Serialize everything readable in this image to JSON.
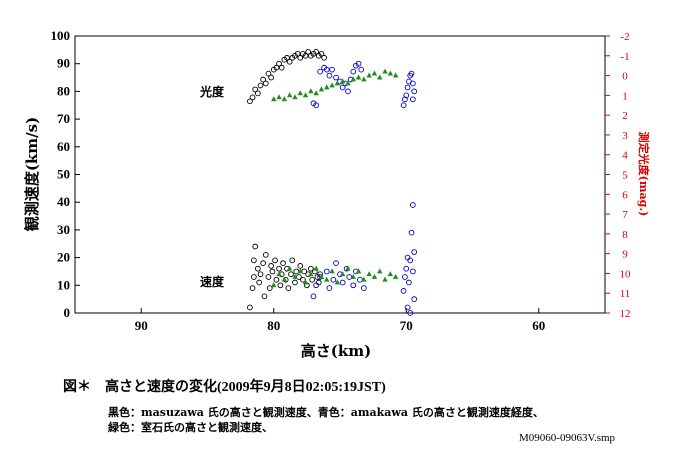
{
  "caption": {
    "label": "図＊　高さと速度の変化",
    "timestamp": "(2009年9月8日02:05:19JST)"
  },
  "legend_lines": [
    "黒色：masuzawa 氏の高さと観測速度、青色：amakawa 氏の高さと観測速度経度、",
    "緑色：室石氏の高さと観測速度、"
  ],
  "file_id": "M09060-09063V.smp",
  "annotations": {
    "brightness": "光度",
    "velocity": "速度"
  },
  "colors": {
    "series_black": "#000000",
    "series_blue": "#0000cc",
    "series_green": "#228b22",
    "right_axis": "#e00000"
  },
  "chart_data": {
    "type": "scatter",
    "xlabel": "高さ(km)",
    "ylabel": "観測速度(km/s)",
    "ylabel_right": "測定光度(mag.)",
    "xlim": [
      95,
      55
    ],
    "ylim": [
      0,
      100
    ],
    "ylim_right": [
      12,
      -2
    ],
    "x_ticks": [
      90,
      80,
      70,
      60
    ],
    "y_ticks": [
      0,
      10,
      20,
      30,
      40,
      50,
      60,
      70,
      80,
      90,
      100
    ],
    "y_right_ticks": [
      12,
      11,
      10,
      9,
      8,
      7,
      6,
      5,
      4,
      3,
      2,
      1,
      0,
      -1,
      -2
    ],
    "series": [
      {
        "name": "masuzawa",
        "color": "#000000",
        "marker": "circle",
        "velocity": [
          [
            81.8,
            2
          ],
          [
            81.6,
            9
          ],
          [
            81.5,
            13
          ],
          [
            81.5,
            19
          ],
          [
            81.4,
            24
          ],
          [
            81.2,
            16
          ],
          [
            81.1,
            11
          ],
          [
            81,
            14
          ],
          [
            80.8,
            18
          ],
          [
            80.7,
            6
          ],
          [
            80.6,
            21
          ],
          [
            80.4,
            13
          ],
          [
            80.3,
            9
          ],
          [
            80.2,
            17
          ],
          [
            80.1,
            15
          ],
          [
            79.9,
            19
          ],
          [
            79.8,
            12
          ],
          [
            79.6,
            16
          ],
          [
            79.5,
            10
          ],
          [
            79.4,
            14
          ],
          [
            79.3,
            18
          ],
          [
            79.1,
            12
          ],
          [
            79,
            16
          ],
          [
            78.9,
            9
          ],
          [
            78.7,
            14
          ],
          [
            78.6,
            19
          ],
          [
            78.4,
            11
          ],
          [
            78.3,
            15
          ],
          [
            78.1,
            13
          ],
          [
            78,
            17
          ],
          [
            77.8,
            12
          ],
          [
            77.7,
            15
          ],
          [
            77.5,
            10
          ],
          [
            77.4,
            14
          ],
          [
            77.2,
            16
          ],
          [
            77.1,
            12
          ],
          [
            76.9,
            15
          ],
          [
            76.7,
            13
          ],
          [
            76.6,
            11
          ],
          [
            76.5,
            14
          ]
        ],
        "brightness_mag": [
          [
            81.8,
            1.3
          ],
          [
            81.6,
            1.1
          ],
          [
            81.4,
            0.7
          ],
          [
            81.2,
            0.9
          ],
          [
            81,
            0.5
          ],
          [
            80.8,
            0.2
          ],
          [
            80.6,
            0.4
          ],
          [
            80.4,
            -0.1
          ],
          [
            80.2,
            0.1
          ],
          [
            80,
            -0.3
          ],
          [
            79.8,
            -0.4
          ],
          [
            79.6,
            -0.6
          ],
          [
            79.4,
            -0.4
          ],
          [
            79.2,
            -0.8
          ],
          [
            79,
            -0.9
          ],
          [
            78.8,
            -0.7
          ],
          [
            78.6,
            -0.9
          ],
          [
            78.4,
            -1
          ],
          [
            78.2,
            -1.1
          ],
          [
            78,
            -0.9
          ],
          [
            77.8,
            -1.1
          ],
          [
            77.6,
            -1
          ],
          [
            77.4,
            -1.2
          ],
          [
            77.2,
            -1
          ],
          [
            77,
            -1.1
          ],
          [
            76.8,
            -1.2
          ],
          [
            76.6,
            -1
          ],
          [
            76.4,
            -1.1
          ],
          [
            76.2,
            -0.9
          ]
        ]
      },
      {
        "name": "amakawa",
        "color": "#0000cc",
        "marker": "circle",
        "velocity": [
          [
            77,
            6
          ],
          [
            76.8,
            10
          ],
          [
            76.5,
            13
          ],
          [
            76,
            15
          ],
          [
            75.8,
            9
          ],
          [
            75.5,
            12
          ],
          [
            75.3,
            18
          ],
          [
            75,
            14
          ],
          [
            74.8,
            11
          ],
          [
            74.5,
            16
          ],
          [
            74.3,
            13
          ],
          [
            74,
            10
          ],
          [
            73.8,
            15
          ],
          [
            73.5,
            12
          ],
          [
            73.2,
            9
          ],
          [
            70.2,
            8
          ],
          [
            70.1,
            13
          ],
          [
            70,
            16
          ],
          [
            69.9,
            2
          ],
          [
            69.9,
            20
          ],
          [
            69.8,
            11
          ],
          [
            69.7,
            19
          ],
          [
            69.7,
            0
          ],
          [
            69.6,
            29
          ],
          [
            69.5,
            39
          ],
          [
            69.5,
            15
          ],
          [
            69.4,
            22
          ],
          [
            69.4,
            5
          ]
        ],
        "brightness_mag": [
          [
            77,
            1.4
          ],
          [
            76.8,
            1.5
          ],
          [
            76.5,
            -0.2
          ],
          [
            76.2,
            -0.4
          ],
          [
            76,
            -0.3
          ],
          [
            75.8,
            0
          ],
          [
            75.6,
            -0.3
          ],
          [
            75.3,
            0.1
          ],
          [
            75,
            0.3
          ],
          [
            74.8,
            0.6
          ],
          [
            74.6,
            0.4
          ],
          [
            74.4,
            0.8
          ],
          [
            74.2,
            0.2
          ],
          [
            74,
            -0.2
          ],
          [
            73.8,
            -0.5
          ],
          [
            73.6,
            -0.6
          ],
          [
            73.4,
            -0.3
          ],
          [
            70.2,
            1.5
          ],
          [
            70.1,
            1.2
          ],
          [
            70,
            1
          ],
          [
            69.9,
            0.6
          ],
          [
            69.8,
            0.3
          ],
          [
            69.7,
            0
          ],
          [
            69.6,
            -0.1
          ],
          [
            69.5,
            0.4
          ],
          [
            69.5,
            1.2
          ],
          [
            69.4,
            0.8
          ]
        ]
      },
      {
        "name": "室石",
        "color": "#228b22",
        "marker": "triangle",
        "velocity": [
          [
            80,
            10
          ],
          [
            79.6,
            14
          ],
          [
            79.2,
            12
          ],
          [
            78.8,
            16
          ],
          [
            78.4,
            13
          ],
          [
            78,
            15
          ],
          [
            77.6,
            11
          ],
          [
            77.2,
            14
          ],
          [
            76.8,
            16
          ],
          [
            76.4,
            13
          ],
          [
            76,
            12
          ],
          [
            75.6,
            15
          ],
          [
            75.2,
            11
          ],
          [
            74.8,
            14
          ],
          [
            74.4,
            16
          ],
          [
            74,
            13
          ],
          [
            73.6,
            15
          ],
          [
            73.2,
            12
          ],
          [
            72.8,
            14
          ],
          [
            72.4,
            13
          ],
          [
            72,
            15
          ],
          [
            71.6,
            12
          ],
          [
            71.2,
            14
          ],
          [
            70.8,
            13
          ]
        ],
        "brightness_mag": [
          [
            80,
            1.2
          ],
          [
            79.6,
            1.1
          ],
          [
            79.2,
            1.2
          ],
          [
            78.8,
            1
          ],
          [
            78.4,
            1.1
          ],
          [
            78,
            0.9
          ],
          [
            77.6,
            1
          ],
          [
            77.2,
            0.8
          ],
          [
            76.8,
            0.9
          ],
          [
            76.4,
            0.7
          ],
          [
            76,
            0.6
          ],
          [
            75.6,
            0.5
          ],
          [
            75.2,
            0.4
          ],
          [
            74.8,
            0.3
          ],
          [
            74.4,
            0.4
          ],
          [
            74,
            0.2
          ],
          [
            73.6,
            0.1
          ],
          [
            73.2,
            0.2
          ],
          [
            72.8,
            0
          ],
          [
            72.4,
            -0.1
          ],
          [
            72,
            0.1
          ],
          [
            71.6,
            -0.2
          ],
          [
            71.2,
            -0.1
          ],
          [
            70.8,
            0
          ]
        ]
      }
    ]
  }
}
